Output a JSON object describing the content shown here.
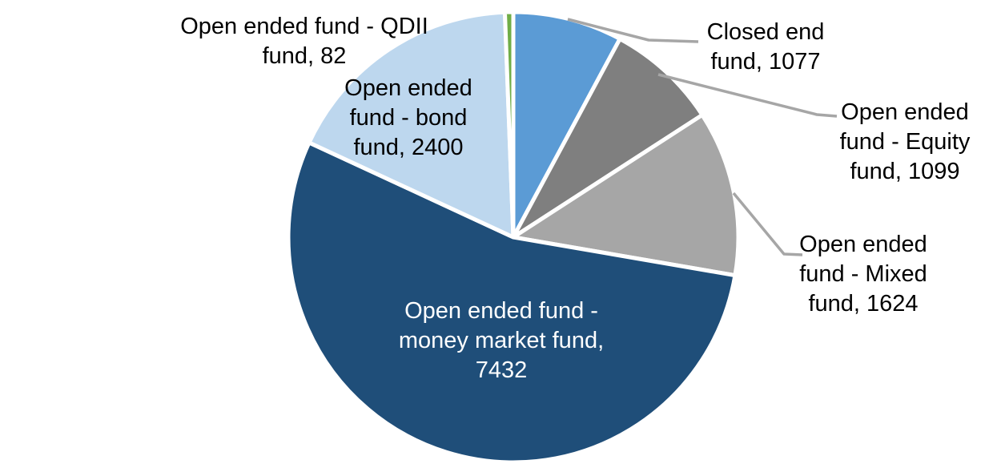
{
  "chart_data": {
    "type": "pie",
    "title": "",
    "legend": "none",
    "background_color": "#FFFFFF",
    "start_angle_deg": 0,
    "direction": "clockwise",
    "total": 13714,
    "slices": [
      {
        "category": "Closed end fund",
        "value": 1077,
        "color": "#5B9BD5"
      },
      {
        "category": "Open ended fund - Equity fund",
        "value": 1099,
        "color": "#7F7F7F"
      },
      {
        "category": "Open ended fund - Mixed fund",
        "value": 1624,
        "color": "#A6A6A6"
      },
      {
        "category": "Open ended fund - money market fund",
        "value": 7432,
        "color": "#1F4E79"
      },
      {
        "category": "Open ended fund - bond fund",
        "value": 2400,
        "color": "#BDD7EE"
      },
      {
        "category": "Open ended fund - QDII fund",
        "value": 82,
        "color": "#70AD47"
      }
    ],
    "slice_border_color": "#FFFFFF",
    "leader_line_color": "#A6A6A6",
    "labels": [
      {
        "slice": "Closed end fund",
        "text": "Closed end\nfund, 1077",
        "color": "#000000",
        "placement": "outside"
      },
      {
        "slice": "Open ended fund - Equity fund",
        "text": "Open ended\nfund - Equity\nfund, 1099",
        "color": "#000000",
        "placement": "outside"
      },
      {
        "slice": "Open ended fund - Mixed fund",
        "text": "Open ended\nfund - Mixed\nfund, 1624",
        "color": "#000000",
        "placement": "outside"
      },
      {
        "slice": "Open ended fund - money market fund",
        "text": "Open ended fund -\nmoney market fund,\n7432",
        "color": "#FFFFFF",
        "placement": "inside"
      },
      {
        "slice": "Open ended fund - bond fund",
        "text": "Open ended\nfund - bond\nfund, 2400",
        "color": "#000000",
        "placement": "outside"
      },
      {
        "slice": "Open ended fund - QDII fund",
        "text": "Open ended fund - QDII\nfund, 82",
        "color": "#000000",
        "placement": "outside"
      }
    ]
  }
}
